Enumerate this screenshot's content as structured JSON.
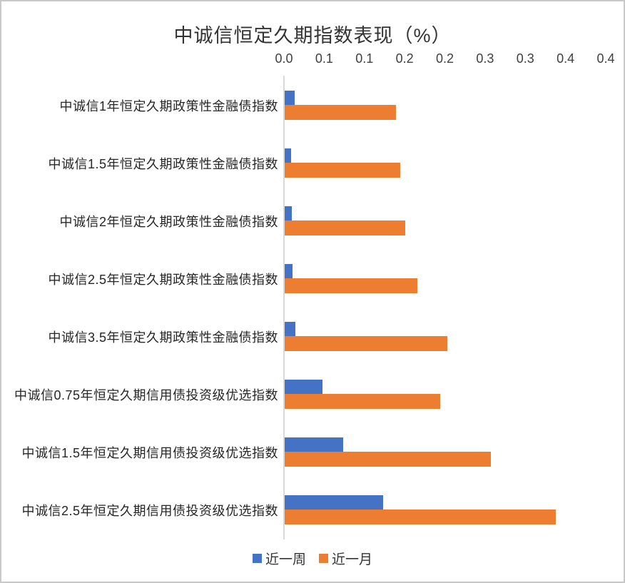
{
  "style": {
    "background": "#FFFFFF",
    "canvas_border": "#C9C9C9",
    "axis_line": "#D9D9D9",
    "text_color": "#262626",
    "tick_color": "#404040"
  },
  "legend": {
    "week_label": "近一周",
    "month_label": "近一月"
  },
  "chart_data": {
    "type": "bar",
    "orientation": "horizontal",
    "title": "中诚信恒定久期指数表现（%）",
    "categories": [
      "中诚信1年恒定久期政策性金融债指数",
      "中诚信1.5年恒定久期政策性金融债指数",
      "中诚信2年恒定久期政策性金融债指数",
      "中诚信2.5年恒定久期政策性金融债指数",
      "中诚信3.5年恒定久期政策性金融债指数",
      "中诚信0.75年恒定久期信用债投资级优选指数",
      "中诚信1.5年恒定久期信用债投资级优选指数",
      "中诚信2.5年恒定久期信用债投资级优选指数"
    ],
    "series": [
      {
        "name": "近一周",
        "color": "#4472C4",
        "values": [
          0.012,
          0.008,
          0.009,
          0.01,
          0.013,
          0.047,
          0.073,
          0.122
        ]
      },
      {
        "name": "近一月",
        "color": "#ED7D31",
        "values": [
          0.138,
          0.144,
          0.15,
          0.165,
          0.202,
          0.193,
          0.256,
          0.337
        ]
      }
    ],
    "xlim": [
      0,
      0.4
    ],
    "x_tick_step": 0.05,
    "x_tick_labels": [
      "0.0",
      "0.1",
      "0.1",
      "0.2",
      "0.2",
      "0.3",
      "0.3",
      "0.4",
      "0.4"
    ],
    "x_axis_position": "top",
    "grid": false,
    "legend_position": "bottom"
  }
}
